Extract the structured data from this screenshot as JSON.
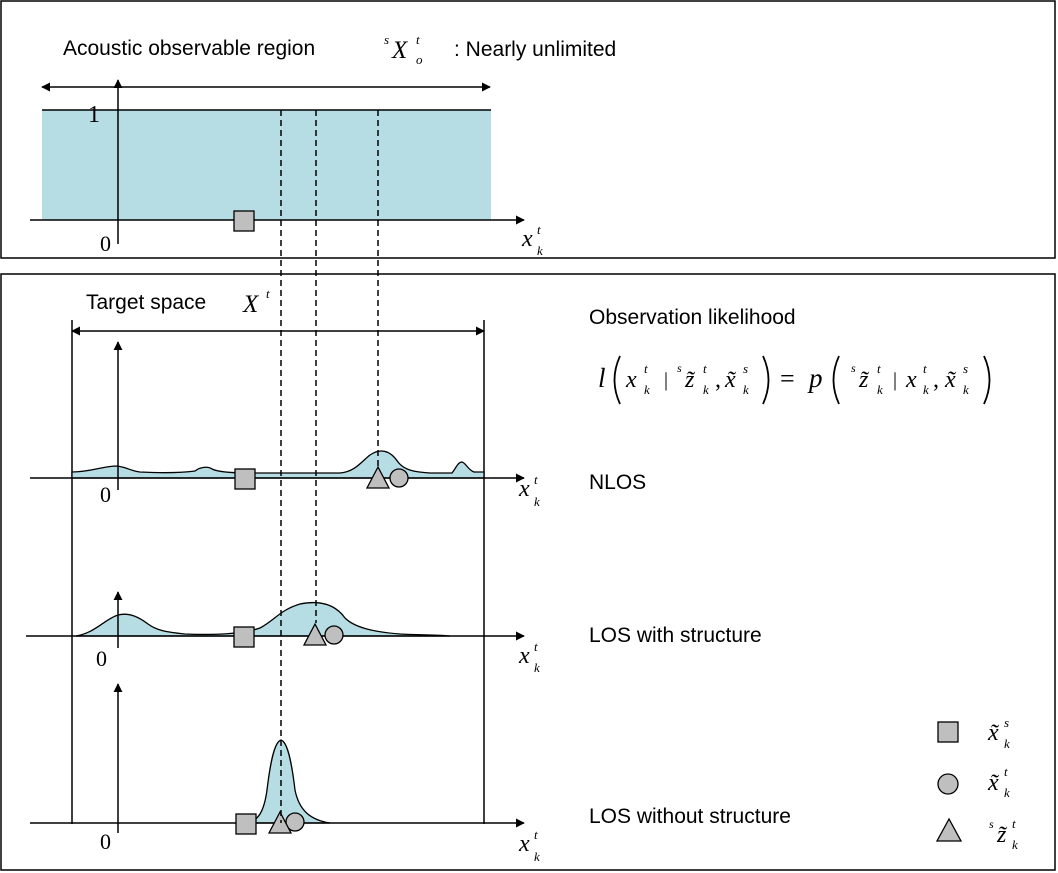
{
  "top_panel": {
    "title": "Acoustic observable region",
    "region_symbol": {
      "pre_sup": "s",
      "base": "X",
      "sup": "t",
      "sub": "o"
    },
    "note": ": Nearly unlimited",
    "y_max_label": "1",
    "y_zero_label": "0",
    "axis_symbol": {
      "base": "x",
      "sup": "t",
      "sub": "k"
    }
  },
  "bottom_panel": {
    "target_space_label": "Target space",
    "target_space_symbol": {
      "base": "X",
      "sup": "t"
    },
    "likelihood_title": "Observation likelihood",
    "likelihood_formula": {
      "l": "l",
      "x": "x",
      "t": "t",
      "k": "k",
      "s": "s",
      "bar": "|",
      "comma": ",",
      "eq": "=",
      "z_tilde": "z̃",
      "x_tilde": "x̃",
      "p": "p"
    },
    "rows": [
      {
        "label": "NLOS",
        "zero": "0",
        "axis_symbol": {
          "base": "x",
          "sup": "t",
          "sub": "k"
        }
      },
      {
        "label": "LOS with structure",
        "zero": "0",
        "axis_symbol": {
          "base": "x",
          "sup": "t",
          "sub": "k"
        }
      },
      {
        "label": "LOS without structure",
        "zero": "0",
        "axis_symbol": {
          "base": "x",
          "sup": "t",
          "sub": "k"
        }
      }
    ]
  },
  "legend": [
    {
      "marker": "square",
      "symbol": {
        "pre_sup": "",
        "base": "x̃",
        "sup": "s",
        "sub": "k"
      }
    },
    {
      "marker": "circle",
      "symbol": {
        "pre_sup": "",
        "base": "x̃",
        "sup": "t",
        "sub": "k"
      }
    },
    {
      "marker": "triangle",
      "symbol": {
        "pre_sup": "s",
        "base": "z̃",
        "sup": "t",
        "sub": "k"
      }
    }
  ],
  "colors": {
    "fill": "#b7dde4",
    "marker_fill": "#bfbfbf",
    "stroke": "#000000"
  }
}
